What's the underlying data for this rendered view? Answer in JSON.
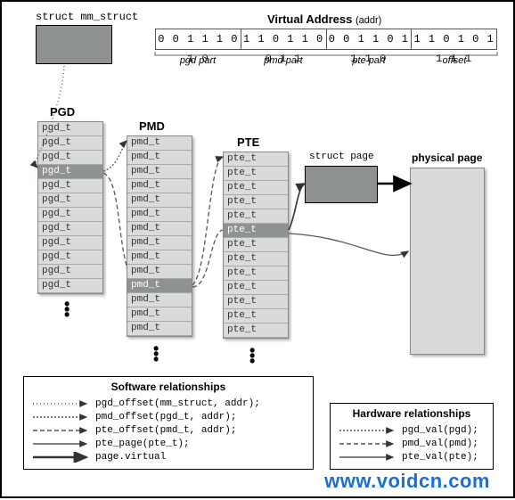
{
  "mm_struct_label": "struct mm_struct",
  "virtual_address": {
    "title": "Virtual Address",
    "subtitle": "(addr)",
    "parts": [
      "0 0 1 1 1 0 1 0",
      "1 1 0 1 1 0 0 1 1",
      "0 0 1 1 0 1 1 1 0",
      "1 1 0 1 0 1 1 1 1"
    ],
    "part_names": [
      "pgd part",
      "pmd part",
      "pte part",
      "offset"
    ]
  },
  "pgd": {
    "label": "PGD",
    "rows": [
      "pgd_t",
      "pgd_t",
      "pgd_t",
      "pgd_t",
      "pgd_t",
      "pgd_t",
      "pgd_t",
      "pgd_t",
      "pgd_t",
      "pgd_t",
      "pgd_t",
      "pgd_t"
    ],
    "highlight": 3
  },
  "pmd": {
    "label": "PMD",
    "rows": [
      "pmd_t",
      "pmd_t",
      "pmd_t",
      "pmd_t",
      "pmd_t",
      "pmd_t",
      "pmd_t",
      "pmd_t",
      "pmd_t",
      "pmd_t",
      "pmd_t",
      "pmd_t",
      "pmd_t",
      "pmd_t"
    ],
    "highlight": 10
  },
  "pte": {
    "label": "PTE",
    "rows": [
      "pte_t",
      "pte_t",
      "pte_t",
      "pte_t",
      "pte_t",
      "pte_t",
      "pte_t",
      "pte_t",
      "pte_t",
      "pte_t",
      "pte_t",
      "pte_t",
      "pte_t"
    ],
    "highlight": 5
  },
  "struct_page_label": "struct page",
  "physical_page_label": "physical page",
  "legend_sw": {
    "title": "Software relationships",
    "items": [
      {
        "dash": "1 3",
        "text": "pgd_offset(mm_struct, addr);"
      },
      {
        "dash": "2 2",
        "text": "pmd_offset(pgd_t, addr);"
      },
      {
        "dash": "5 3",
        "text": "pte_offset(pmd_t, addr);"
      },
      {
        "dash": "",
        "text": "pte_page(pte_t);"
      },
      {
        "dash": "",
        "text": "page.virtual",
        "heavy": true
      }
    ]
  },
  "legend_hw": {
    "title": "Hardware relationships",
    "items": [
      {
        "dash": "2 2",
        "text": "pgd_val(pgd);"
      },
      {
        "dash": "5 3",
        "text": "pmd_val(pmd);"
      },
      {
        "dash": "",
        "text": "pte_val(pte);"
      }
    ]
  },
  "watermark": "www.voidcn.com",
  "colors": {
    "dark_box": "#8e9290",
    "light_box": "#d9dbd8",
    "border": "#000000",
    "watermark": "#1a6fd4"
  }
}
